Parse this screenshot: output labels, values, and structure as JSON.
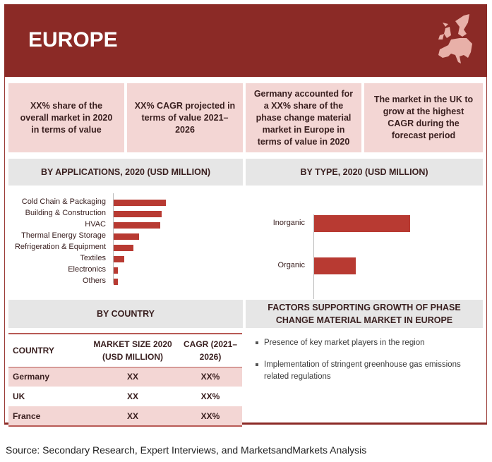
{
  "header": {
    "title": "EUROPE",
    "map_icon": "europe-map-icon",
    "color": "#8b2a26"
  },
  "highlights": [
    "XX% share of the overall market in 2020 in terms of value",
    "XX% CAGR projected in terms of value 2021–2026",
    "Germany accounted for a XX% share of the phase change material market in Europe in terms of value in 2020",
    "The market in the UK to grow at the highest CAGR during the forecast period"
  ],
  "chart_data": [
    {
      "type": "bar",
      "orientation": "horizontal",
      "title": "BY APPLICATIONS, 2020 (USD MILLION)",
      "categories": [
        "Cold Chain & Packaging",
        "Building & Construction",
        "HVAC",
        "Thermal Energy Storage",
        "Refrigeration & Equipment",
        "Textiles",
        "Electronics",
        "Others"
      ],
      "values": [
        74,
        68,
        66,
        36,
        28,
        15,
        6,
        6
      ],
      "color": "#b83a32",
      "grid": false
    },
    {
      "type": "bar",
      "orientation": "horizontal",
      "title": "BY TYPE, 2020 (USD MILLION)",
      "categories": [
        "Inorganic",
        "Organic"
      ],
      "values": [
        136,
        59
      ],
      "color": "#b83a32",
      "grid": false
    }
  ],
  "country": {
    "title": "BY COUNTRY",
    "headers": [
      "COUNTRY",
      "MARKET SIZE 2020 (USD MILLION)",
      "CAGR (2021–2026)"
    ],
    "rows": [
      [
        "Germany",
        "XX",
        "XX%"
      ],
      [
        "UK",
        "XX",
        "XX%"
      ],
      [
        "France",
        "XX",
        "XX%"
      ]
    ]
  },
  "factors": {
    "title": "FACTORS SUPPORTING GROWTH OF PHASE CHANGE MATERIAL MARKET IN EUROPE",
    "items": [
      "Presence of key market players in the region",
      "Implementation of stringent greenhouse gas emissions related regulations"
    ]
  },
  "source": "Source: Secondary Research, Expert Interviews, and MarketsandMarkets Analysis"
}
